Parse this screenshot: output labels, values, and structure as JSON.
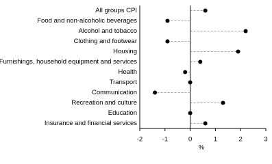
{
  "chart_data": {
    "type": "dot",
    "categories": [
      "All groups CPI",
      "Food and non-alcoholic beverages",
      "Alcohol and tobacco",
      "Clothing and footwear",
      "Housing",
      "Furnishings, household equipment and services",
      "Health",
      "Transport",
      "Communication",
      "Recreation and culture",
      "Education",
      "Insurance and financial services"
    ],
    "values": [
      0.6,
      -0.9,
      2.2,
      -0.9,
      1.9,
      0.4,
      -0.2,
      0.0,
      -1.4,
      1.3,
      0.0,
      0.6
    ],
    "color": "#000000",
    "xlabel": "%",
    "xlim": [
      -2,
      3
    ],
    "xticks": [
      -2,
      -1,
      0,
      1,
      2,
      3
    ]
  }
}
